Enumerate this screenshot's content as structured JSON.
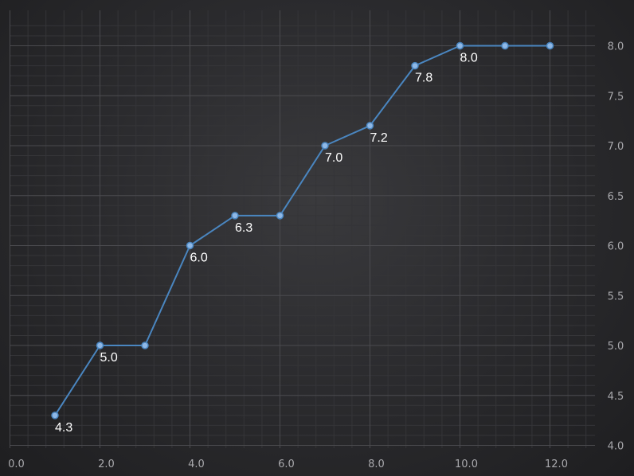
{
  "chart_data": {
    "type": "line",
    "title": "",
    "xlabel": "",
    "ylabel": "",
    "x": [
      1,
      2,
      3,
      4,
      5,
      6,
      7,
      8,
      9,
      10,
      11,
      12
    ],
    "series": [
      {
        "values": [
          4.3,
          5.0,
          5.0,
          6.0,
          6.3,
          6.3,
          7.0,
          7.2,
          7.8,
          8.0,
          8.0,
          8.0
        ],
        "color": "#4a86c0",
        "marker_color": "#8fb8e6"
      }
    ],
    "data_labels": [
      {
        "index": 0,
        "text": "4.3"
      },
      {
        "index": 1,
        "text": "5.0"
      },
      {
        "index": 3,
        "text": "6.0"
      },
      {
        "index": 4,
        "text": "6.3"
      },
      {
        "index": 6,
        "text": "7.0"
      },
      {
        "index": 7,
        "text": "7.2"
      },
      {
        "index": 8,
        "text": "7.8"
      },
      {
        "index": 9,
        "text": "8.0"
      }
    ],
    "xlim": [
      0,
      13
    ],
    "ylim": [
      4.0,
      8.25
    ],
    "x_ticks": [
      {
        "value": 0,
        "label": "0.0"
      },
      {
        "value": 2,
        "label": "2.0"
      },
      {
        "value": 4,
        "label": "4.0"
      },
      {
        "value": 6,
        "label": "6.0"
      },
      {
        "value": 8,
        "label": "8.0"
      },
      {
        "value": 10,
        "label": "10.0"
      },
      {
        "value": 12,
        "label": "12.0"
      }
    ],
    "y_ticks": [
      {
        "value": 4.0,
        "label": "4.0"
      },
      {
        "value": 4.5,
        "label": "4.5"
      },
      {
        "value": 5.0,
        "label": "5.0"
      },
      {
        "value": 5.5,
        "label": "5.5"
      },
      {
        "value": 6.0,
        "label": "6.0"
      },
      {
        "value": 6.5,
        "label": "6.5"
      },
      {
        "value": 7.0,
        "label": "7.0"
      },
      {
        "value": 7.5,
        "label": "7.5"
      },
      {
        "value": 8.0,
        "label": "8.0"
      }
    ],
    "y_axis_position": "right",
    "grid": true,
    "legend": false,
    "colors": {
      "grid_major": "#4a4a4e",
      "grid_minor": "#353538",
      "axis_label": "#a9a9ad",
      "data_label": "#ffffff"
    }
  }
}
